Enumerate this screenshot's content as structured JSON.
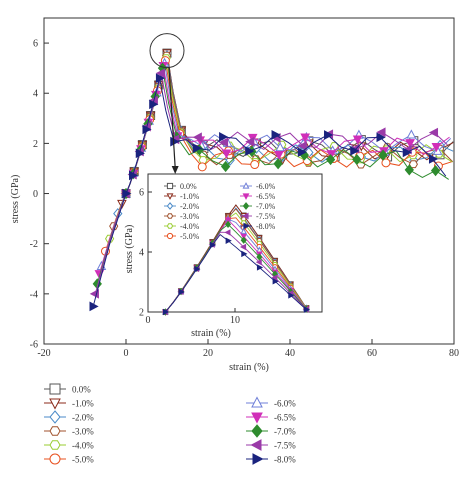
{
  "chart_data": {
    "type": "line",
    "title": "",
    "xlabel": "strain (%)",
    "ylabel": "stress (GPa)",
    "xlim": [
      -20,
      80
    ],
    "ylim": [
      -6,
      7
    ],
    "xticks": [
      "-20",
      "0",
      "20",
      "40",
      "60",
      "80"
    ],
    "yticks": [
      "-6",
      "-4",
      "-2",
      "0",
      "2",
      "4",
      "6"
    ],
    "grid": false,
    "legend_position": "below",
    "series": [
      {
        "name": "0.0%",
        "color": "#555555",
        "marker": "square",
        "peak": [
          10.0,
          5.6
        ],
        "compress_end": [
          0.0,
          0.0
        ],
        "plateau": 1.8
      },
      {
        "name": "-1.0%",
        "color": "#8b2a1a",
        "marker": "triangle-down",
        "peak": [
          10.0,
          5.6
        ],
        "compress_end": [
          -1.0,
          -0.4
        ],
        "plateau": 1.7
      },
      {
        "name": "-2.0%",
        "color": "#4a8ac8",
        "marker": "diamond",
        "peak": [
          10.0,
          5.5
        ],
        "compress_end": [
          -2.0,
          -0.8
        ],
        "plateau": 1.6
      },
      {
        "name": "-3.0%",
        "color": "#a0522d",
        "marker": "hexagon",
        "peak": [
          9.9,
          5.5
        ],
        "compress_end": [
          -3.0,
          -1.3
        ],
        "plateau": 1.5
      },
      {
        "name": "-4.0%",
        "color": "#9acd32",
        "marker": "hexagon",
        "peak": [
          9.8,
          5.4
        ],
        "compress_end": [
          -4.0,
          -1.8
        ],
        "plateau": 1.6
      },
      {
        "name": "-5.0%",
        "color": "#e8501e",
        "marker": "circle",
        "peak": [
          9.6,
          5.3
        ],
        "compress_end": [
          -5.0,
          -2.3
        ],
        "plateau": 1.4
      },
      {
        "name": "-6.0%",
        "color": "#6f7fd8",
        "marker": "triangle-up",
        "peak": [
          9.4,
          5.2
        ],
        "compress_end": [
          -6.0,
          -2.9
        ],
        "plateau": 2.0
      },
      {
        "name": "-6.5%",
        "color": "#d02fb8",
        "marker": "triangle-down",
        "peak": [
          9.1,
          5.1
        ],
        "compress_end": [
          -6.5,
          -3.2
        ],
        "plateau": 1.9
      },
      {
        "name": "-7.0%",
        "color": "#2e8b2e",
        "marker": "diamond",
        "peak": [
          8.9,
          5.0
        ],
        "compress_end": [
          -7.0,
          -3.6
        ],
        "plateau": 1.4
      },
      {
        "name": "-7.5%",
        "color": "#9a3aa8",
        "marker": "triangle-left",
        "peak": [
          8.6,
          4.8
        ],
        "compress_end": [
          -7.5,
          -4.0
        ],
        "plateau": 2.1
      },
      {
        "name": "-8.0%",
        "color": "#1a237e",
        "marker": "triangle-right",
        "peak": [
          8.2,
          4.6
        ],
        "compress_end": [
          -8.0,
          -4.5
        ],
        "plateau": 2.0
      }
    ],
    "inset": {
      "xlabel": "strain (%)",
      "ylabel": "stress (GPa)",
      "xlim": [
        0,
        20
      ],
      "ylim": [
        2,
        6.6
      ],
      "xticks": [
        "0",
        "10"
      ],
      "yticks": [
        "2",
        "4",
        "6"
      ]
    }
  }
}
